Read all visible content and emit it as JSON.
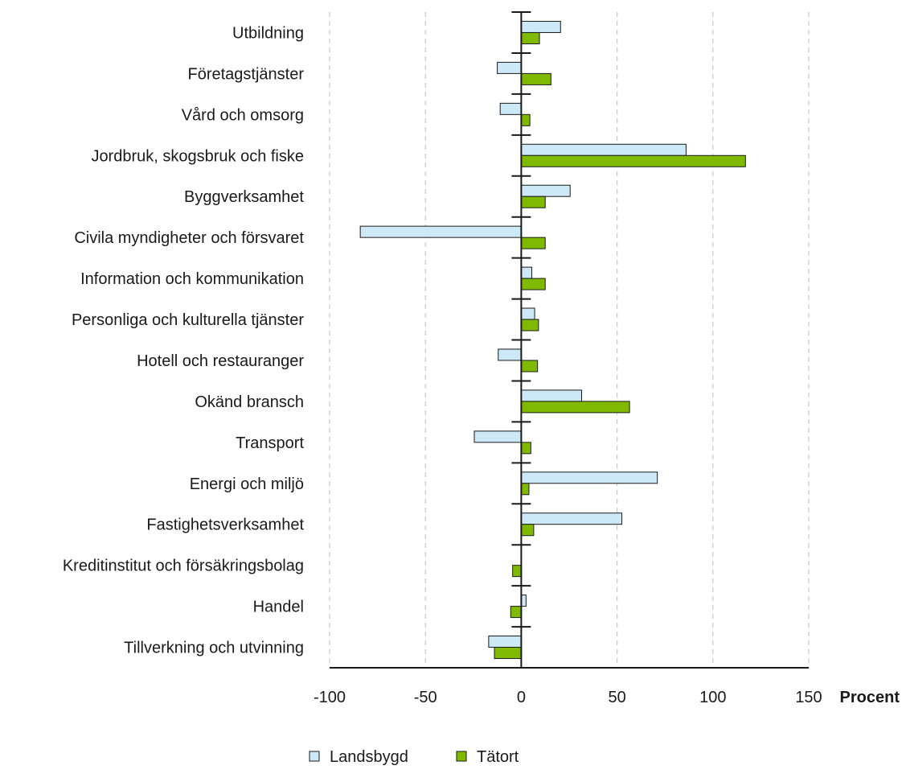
{
  "chart_data": {
    "type": "bar",
    "orientation": "horizontal",
    "categories": [
      "Utbildning",
      "Företagstjänster",
      "Vård och omsorg",
      "Jordbruk, skogsbruk och fiske",
      "Byggverksamhet",
      "Civila myndigheter och försvaret",
      "Information och kommunikation",
      "Personliga och kulturella tjänster",
      "Hotell och restauranger",
      "Okänd bransch",
      "Transport",
      "Energi och miljö",
      "Fastighetsverksamhet",
      "Kreditinstitut och försäkringsbolag",
      "Handel",
      "Tillverkning och utvinning"
    ],
    "series": [
      {
        "name": "Landsbygd",
        "color": "#cde9f7",
        "values": [
          20.5,
          -12.5,
          -11,
          86,
          25.5,
          -84,
          5.5,
          7,
          -12,
          31.5,
          -24.5,
          71,
          52.5,
          0,
          2.5,
          -17
        ]
      },
      {
        "name": "Tätort",
        "color": "#7fba00",
        "values": [
          9.5,
          15.5,
          4.5,
          117,
          12.5,
          12.5,
          12.5,
          9,
          8.5,
          56.5,
          5,
          4,
          6.5,
          -4.5,
          -5.5,
          -14
        ]
      }
    ],
    "xlim": [
      -100,
      150
    ],
    "xticks": [
      -100,
      -50,
      0,
      50,
      100,
      150
    ],
    "xtick_labels": [
      "-100",
      "-50",
      "0",
      "50",
      "100",
      "150"
    ],
    "xlabel": "Procent",
    "grid": "vertical dashed",
    "legend_position": "bottom"
  }
}
